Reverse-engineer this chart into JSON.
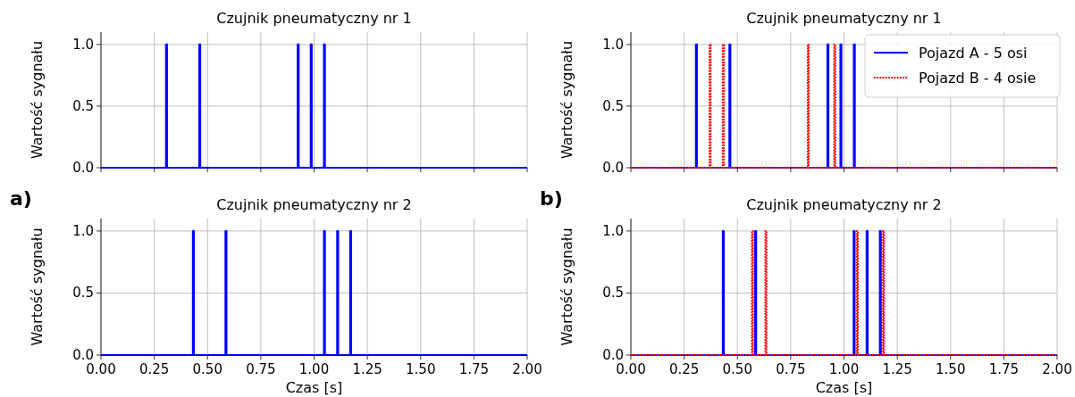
{
  "chart_data": [
    {
      "type": "line",
      "title": "Czujnik pneumatyczny nr 1",
      "ylabel": "Wartość sygnału",
      "xlim": [
        0,
        2
      ],
      "ylim": [
        0,
        1.1
      ],
      "xticks": [
        {
          "value": 0,
          "label": null
        },
        {
          "value": 0.25,
          "label": null
        },
        {
          "value": 0.5,
          "label": null
        },
        {
          "value": 0.75,
          "label": null
        },
        {
          "value": 1,
          "label": null
        },
        {
          "value": 1.25,
          "label": null
        },
        {
          "value": 1.5,
          "label": null
        },
        {
          "value": 1.75,
          "label": null
        },
        {
          "value": 2,
          "label": null
        }
      ],
      "yticks": [
        {
          "value": 0,
          "label": "0.0"
        },
        {
          "value": 0.5,
          "label": "0.5"
        },
        {
          "value": 1,
          "label": "1.0"
        }
      ],
      "grid": true,
      "tick_labels": "y",
      "marker": "none",
      "series": [
        {
          "color": "#0000ff",
          "line_style": "solid",
          "x": [
            0,
            0.305,
            0.305,
            0.31,
            0.31,
            0.461,
            0.461,
            0.466,
            0.466,
            0.923,
            0.923,
            0.928,
            0.928,
            0.984,
            0.984,
            0.989,
            0.989,
            1.046,
            1.046,
            1.051,
            1.051,
            2
          ],
          "values": [
            0,
            0,
            1,
            1,
            0,
            0,
            1,
            1,
            0,
            0,
            1,
            1,
            0,
            0,
            1,
            1,
            0,
            0,
            1,
            1,
            0,
            0
          ]
        }
      ]
    },
    {
      "type": "line",
      "title": "Czujnik pneumatyczny nr 1",
      "ylabel": "Wartość sygnału",
      "xlim": [
        0,
        2
      ],
      "ylim": [
        0,
        1.1
      ],
      "xticks": [
        {
          "value": 0,
          "label": null
        },
        {
          "value": 0.25,
          "label": null
        },
        {
          "value": 0.5,
          "label": null
        },
        {
          "value": 0.75,
          "label": null
        },
        {
          "value": 1,
          "label": null
        },
        {
          "value": 1.25,
          "label": null
        },
        {
          "value": 1.5,
          "label": null
        },
        {
          "value": 1.75,
          "label": null
        },
        {
          "value": 2,
          "label": null
        }
      ],
      "yticks": [
        {
          "value": 0,
          "label": "0.0"
        },
        {
          "value": 0.5,
          "label": "0.5"
        },
        {
          "value": 1,
          "label": "1.0"
        }
      ],
      "grid": true,
      "tick_labels": "y",
      "marker": "none",
      "legend": "top right",
      "series": [
        {
          "name": "Pojazd A - 5 osi",
          "color": "#0000ff",
          "line_style": "solid",
          "x": [
            0,
            0.305,
            0.305,
            0.31,
            0.31,
            0.462,
            0.462,
            0.467,
            0.467,
            0.922,
            0.922,
            0.927,
            0.927,
            0.983,
            0.983,
            0.988,
            0.988,
            1.046,
            1.046,
            1.051,
            1.051,
            2
          ],
          "values": [
            0,
            0,
            1,
            1,
            0,
            0,
            1,
            1,
            0,
            0,
            1,
            1,
            0,
            0,
            1,
            1,
            0,
            0,
            1,
            1,
            0,
            0
          ]
        },
        {
          "name": "Pojazd B - 4 osie",
          "color": "#ff0000",
          "line_style": "dotted",
          "x": [
            0,
            0.369,
            0.369,
            0.374,
            0.374,
            0.431,
            0.431,
            0.436,
            0.436,
            0.83,
            0.83,
            0.835,
            0.835,
            0.954,
            0.954,
            0.959,
            0.959,
            2
          ],
          "values": [
            0,
            0,
            1,
            1,
            0,
            0,
            1,
            1,
            0,
            0,
            1,
            1,
            0,
            0,
            1,
            1,
            0,
            0
          ]
        }
      ]
    },
    {
      "type": "line",
      "title": "Czujnik pneumatyczny nr 2",
      "ylabel": "Wartość sygnału",
      "xlabel": "Czas [s]",
      "annotations": [
        "a)"
      ],
      "xlim": [
        0,
        2
      ],
      "ylim": [
        0,
        1.1
      ],
      "xticks": [
        {
          "value": 0,
          "label": "0.00"
        },
        {
          "value": 0.25,
          "label": "0.25"
        },
        {
          "value": 0.5,
          "label": "0.50"
        },
        {
          "value": 0.75,
          "label": "0.75"
        },
        {
          "value": 1,
          "label": "1.00"
        },
        {
          "value": 1.25,
          "label": "1.25"
        },
        {
          "value": 1.5,
          "label": "1.50"
        },
        {
          "value": 1.75,
          "label": "1.75"
        },
        {
          "value": 2,
          "label": "2.00"
        }
      ],
      "yticks": [
        {
          "value": 0,
          "label": "0.0"
        },
        {
          "value": 0.5,
          "label": "0.5"
        },
        {
          "value": 1,
          "label": "1.0"
        }
      ],
      "grid": true,
      "marker": "none",
      "series": [
        {
          "color": "#0000ff",
          "line_style": "solid",
          "x": [
            0,
            0.431,
            0.431,
            0.436,
            0.436,
            0.584,
            0.584,
            0.589,
            0.589,
            1.046,
            1.046,
            1.051,
            1.051,
            1.108,
            1.108,
            1.113,
            1.113,
            1.169,
            1.169,
            1.174,
            1.174,
            2
          ],
          "values": [
            0,
            0,
            1,
            1,
            0,
            0,
            1,
            1,
            0,
            0,
            1,
            1,
            0,
            0,
            1,
            1,
            0,
            0,
            1,
            1,
            0,
            0
          ]
        }
      ]
    },
    {
      "type": "line",
      "title": "Czujnik pneumatyczny nr 2",
      "ylabel": "Wartość sygnału",
      "xlabel": "Czas [s]",
      "annotations": [
        "b)"
      ],
      "xlim": [
        0,
        2
      ],
      "ylim": [
        0,
        1.1
      ],
      "xticks": [
        {
          "value": 0,
          "label": "0.00"
        },
        {
          "value": 0.25,
          "label": "0.25"
        },
        {
          "value": 0.5,
          "label": "0.50"
        },
        {
          "value": 0.75,
          "label": "0.75"
        },
        {
          "value": 1,
          "label": "1.00"
        },
        {
          "value": 1.25,
          "label": "1.25"
        },
        {
          "value": 1.5,
          "label": "1.50"
        },
        {
          "value": 1.75,
          "label": "1.75"
        },
        {
          "value": 2,
          "label": "2.00"
        }
      ],
      "yticks": [
        {
          "value": 0,
          "label": "0.0"
        },
        {
          "value": 0.5,
          "label": "0.5"
        },
        {
          "value": 1,
          "label": "1.0"
        }
      ],
      "grid": true,
      "marker": "none",
      "series": [
        {
          "color": "#0000ff",
          "line_style": "solid",
          "x": [
            0,
            0.431,
            0.431,
            0.436,
            0.436,
            0.583,
            0.583,
            0.588,
            0.588,
            1.045,
            1.045,
            1.05,
            1.05,
            1.106,
            1.106,
            1.111,
            1.111,
            1.168,
            1.168,
            1.173,
            1.173,
            2
          ],
          "values": [
            0,
            0,
            1,
            1,
            0,
            0,
            1,
            1,
            0,
            0,
            1,
            1,
            0,
            0,
            1,
            1,
            0,
            0,
            1,
            1,
            0,
            0
          ]
        },
        {
          "color": "#ff0000",
          "line_style": "dotted",
          "x": [
            0,
            0.568,
            0.568,
            0.573,
            0.573,
            0.631,
            0.631,
            0.636,
            0.636,
            1.06,
            1.06,
            1.065,
            1.065,
            1.183,
            1.183,
            1.188,
            1.188,
            2
          ],
          "values": [
            0,
            0,
            1,
            1,
            0,
            0,
            1,
            1,
            0,
            0,
            1,
            1,
            0,
            0,
            1,
            1,
            0,
            0
          ]
        }
      ]
    }
  ]
}
